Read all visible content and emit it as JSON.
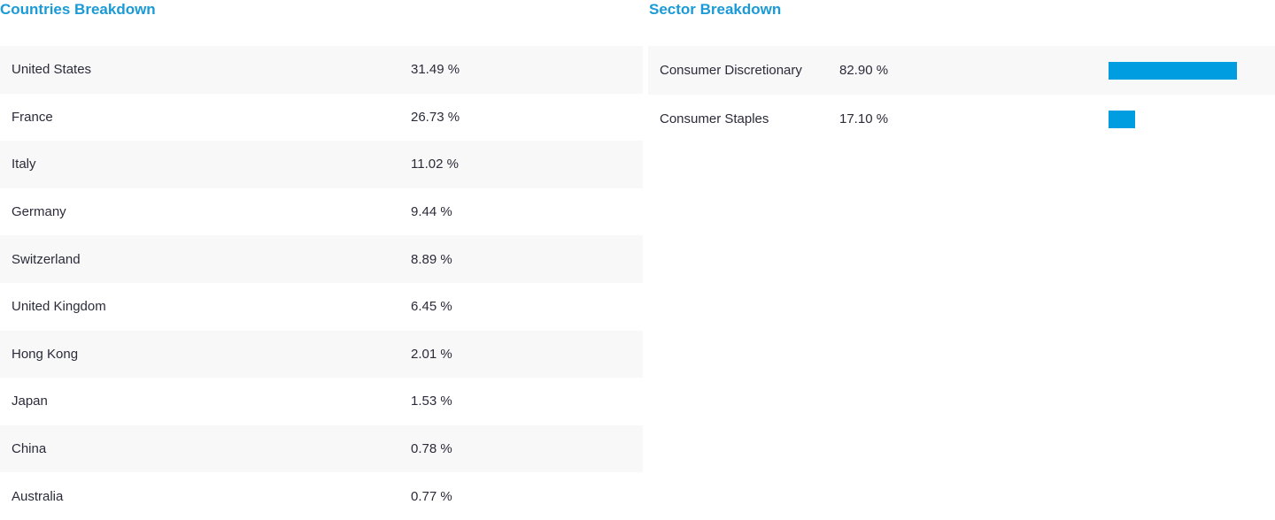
{
  "countries": {
    "title": "Countries Breakdown",
    "rows": [
      {
        "name": "United States",
        "value": "31.49 %"
      },
      {
        "name": "France",
        "value": "26.73 %"
      },
      {
        "name": "Italy",
        "value": "11.02 %"
      },
      {
        "name": "Germany",
        "value": "9.44 %"
      },
      {
        "name": "Switzerland",
        "value": "8.89 %"
      },
      {
        "name": "United Kingdom",
        "value": "6.45 %"
      },
      {
        "name": "Hong Kong",
        "value": "2.01 %"
      },
      {
        "name": "Japan",
        "value": "1.53 %"
      },
      {
        "name": "China",
        "value": "0.78 %"
      },
      {
        "name": "Australia",
        "value": "0.77 %"
      }
    ]
  },
  "sectors": {
    "title": "Sector Breakdown",
    "bar_color": "#009ee0",
    "rows": [
      {
        "name": "Consumer Discretionary",
        "value": "82.90 %",
        "percent": 82.9
      },
      {
        "name": "Consumer Staples",
        "value": "17.10 %",
        "percent": 17.1
      }
    ]
  }
}
